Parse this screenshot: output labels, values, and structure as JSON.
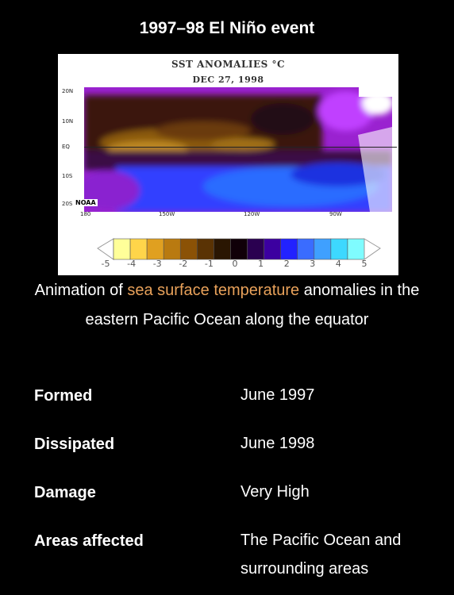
{
  "title": "1997–98 El Niño event",
  "figure": {
    "map_title": "SST ANOMALIES °C",
    "map_date": "DEC 27, 1998",
    "lat_labels": [
      "20N",
      "10N",
      "EQ",
      "10S",
      "20S"
    ],
    "lon_labels": [
      "180",
      "150W",
      "120W",
      "90W"
    ],
    "credit": "NOAA",
    "scale_labels": [
      "-5",
      "-4",
      "-3",
      "-2",
      "-1",
      "0",
      "1",
      "2",
      "3",
      "4",
      "5"
    ],
    "scale_colors": [
      "#ffff99",
      "#ffd54a",
      "#e0a020",
      "#b97a10",
      "#8b5206",
      "#5a3304",
      "#2a1602",
      "#100008",
      "#2a0050",
      "#3c00a0",
      "#2222ff",
      "#3a6cff",
      "#3fa0ff",
      "#3dd8ff",
      "#7ffcff"
    ]
  },
  "caption": {
    "before": "Animation of ",
    "link": "sea surface temperature",
    "after": " anomalies in the eastern Pacific Ocean along the equator"
  },
  "info": [
    {
      "label": "Formed",
      "value": "June 1997"
    },
    {
      "label": "Dissipated",
      "value": "June 1998"
    },
    {
      "label": "Damage",
      "value": "Very High"
    },
    {
      "label": "Areas affected",
      "value": "The Pacific Ocean and surrounding areas"
    }
  ],
  "colors": {
    "link": "#e8a15a",
    "background": "#000000",
    "text": "#ffffff"
  }
}
